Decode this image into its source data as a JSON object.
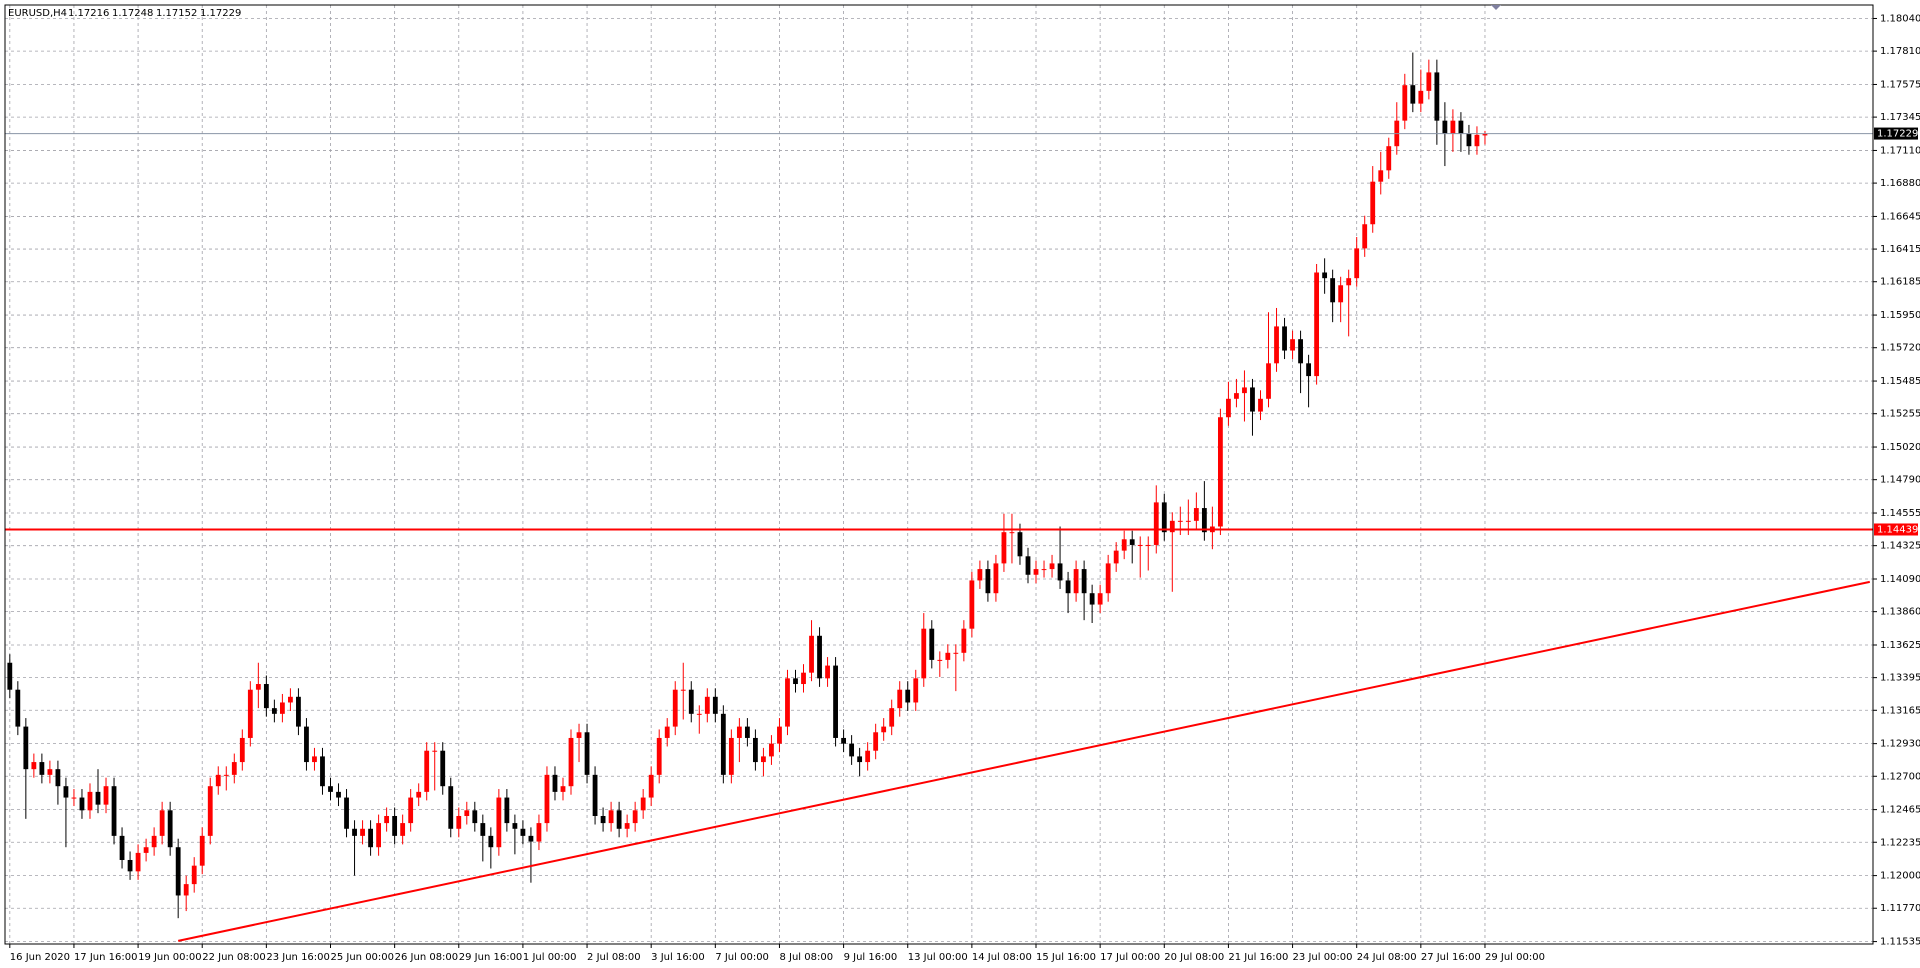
{
  "chart_data": {
    "type": "candlestick",
    "symbol": "EURUSD,H4",
    "up_color": "#ff0000",
    "down_color": "#000000",
    "grid": true,
    "xlim": [
      -0.6,
      232.4
    ],
    "ylim": [
      1.11518,
      1.18135
    ],
    "xticks": [
      {
        "value": 0,
        "label": "16 Jun 2020"
      },
      {
        "value": 8,
        "label": "17 Jun 16:00"
      },
      {
        "value": 16,
        "label": "19 Jun 00:00"
      },
      {
        "value": 24,
        "label": "22 Jun 08:00"
      },
      {
        "value": 32,
        "label": "23 Jun 16:00"
      },
      {
        "value": 40,
        "label": "25 Jun 00:00"
      },
      {
        "value": 48,
        "label": "26 Jun 08:00"
      },
      {
        "value": 56,
        "label": "29 Jun 16:00"
      },
      {
        "value": 64,
        "label": "1 Jul 00:00"
      },
      {
        "value": 72,
        "label": "2 Jul 08:00"
      },
      {
        "value": 80,
        "label": "3 Jul 16:00"
      },
      {
        "value": 88,
        "label": "7 Jul 00:00"
      },
      {
        "value": 96,
        "label": "8 Jul 08:00"
      },
      {
        "value": 104,
        "label": "9 Jul 16:00"
      },
      {
        "value": 112,
        "label": "13 Jul 00:00"
      },
      {
        "value": 120,
        "label": "14 Jul 08:00"
      },
      {
        "value": 128,
        "label": "15 Jul 16:00"
      },
      {
        "value": 136,
        "label": "17 Jul 00:00"
      },
      {
        "value": 144,
        "label": "20 Jul 08:00"
      },
      {
        "value": 152,
        "label": "21 Jul 16:00"
      },
      {
        "value": 160,
        "label": "23 Jul 00:00"
      },
      {
        "value": 168,
        "label": "24 Jul 08:00"
      },
      {
        "value": 176,
        "label": "27 Jul 16:00"
      },
      {
        "value": 184,
        "label": "29 Jul 00:00"
      }
    ],
    "yticks": [
      {
        "value": 1.1804,
        "label": "1.18040"
      },
      {
        "value": 1.1781,
        "label": "1.17810"
      },
      {
        "value": 1.17575,
        "label": "1.17575"
      },
      {
        "value": 1.17345,
        "label": "1.17345"
      },
      {
        "value": 1.1711,
        "label": "1.17110"
      },
      {
        "value": 1.1688,
        "label": "1.16880"
      },
      {
        "value": 1.16645,
        "label": "1.16645"
      },
      {
        "value": 1.16415,
        "label": "1.16415"
      },
      {
        "value": 1.16185,
        "label": "1.16185"
      },
      {
        "value": 1.1595,
        "label": "1.15950"
      },
      {
        "value": 1.1572,
        "label": "1.15720"
      },
      {
        "value": 1.15485,
        "label": "1.15485"
      },
      {
        "value": 1.15255,
        "label": "1.15255"
      },
      {
        "value": 1.1502,
        "label": "1.15020"
      },
      {
        "value": 1.1479,
        "label": "1.14790"
      },
      {
        "value": 1.14555,
        "label": "1.14555"
      },
      {
        "value": 1.14325,
        "label": "1.14325"
      },
      {
        "value": 1.1409,
        "label": "1.14090"
      },
      {
        "value": 1.1386,
        "label": "1.13860"
      },
      {
        "value": 1.13625,
        "label": "1.13625"
      },
      {
        "value": 1.13395,
        "label": "1.13395"
      },
      {
        "value": 1.13165,
        "label": "1.13165"
      },
      {
        "value": 1.1293,
        "label": "1.12930"
      },
      {
        "value": 1.127,
        "label": "1.12700"
      },
      {
        "value": 1.12465,
        "label": "1.12465"
      },
      {
        "value": 1.12235,
        "label": "1.12235"
      },
      {
        "value": 1.12,
        "label": "1.12000"
      },
      {
        "value": 1.1177,
        "label": "1.11770"
      },
      {
        "value": 1.11535,
        "label": "1.11535"
      }
    ],
    "hline": {
      "value": 1.14439,
      "color": "#ff0000"
    },
    "trendline": {
      "x": [
        21,
        232
      ],
      "y": [
        1.1154,
        1.1407
      ],
      "color": "#ff0000"
    },
    "candles": [
      [
        1.135,
        1.1356,
        1.1325,
        1.1331
      ],
      [
        1.1331,
        1.1337,
        1.1299,
        1.1305
      ],
      [
        1.1305,
        1.1311,
        1.124,
        1.1275
      ],
      [
        1.1275,
        1.1286,
        1.1269,
        1.128
      ],
      [
        1.128,
        1.1286,
        1.1265,
        1.1271
      ],
      [
        1.1271,
        1.1281,
        1.1265,
        1.1275
      ],
      [
        1.1275,
        1.1281,
        1.125,
        1.1263
      ],
      [
        1.1263,
        1.1269,
        1.122,
        1.1255
      ],
      [
        1.1255,
        1.1261,
        1.1249,
        1.1255
      ],
      [
        1.1255,
        1.1261,
        1.124,
        1.1246
      ],
      [
        1.1246,
        1.1265,
        1.124,
        1.1259
      ],
      [
        1.1259,
        1.1275,
        1.1244,
        1.125
      ],
      [
        1.125,
        1.1269,
        1.1244,
        1.1263
      ],
      [
        1.1263,
        1.1269,
        1.1222,
        1.1228
      ],
      [
        1.1228,
        1.1234,
        1.1205,
        1.1211
      ],
      [
        1.1211,
        1.1217,
        1.1197,
        1.1203
      ],
      [
        1.1203,
        1.1222,
        1.1197,
        1.1216
      ],
      [
        1.1216,
        1.1226,
        1.121,
        1.122
      ],
      [
        1.122,
        1.1234,
        1.1214,
        1.1228
      ],
      [
        1.1228,
        1.1252,
        1.1222,
        1.1246
      ],
      [
        1.1246,
        1.1252,
        1.1214,
        1.122
      ],
      [
        1.122,
        1.1226,
        1.117,
        1.1186
      ],
      [
        1.1186,
        1.12,
        1.1175,
        1.1194
      ],
      [
        1.1194,
        1.1213,
        1.1188,
        1.1207
      ],
      [
        1.1207,
        1.1234,
        1.1201,
        1.1228
      ],
      [
        1.1228,
        1.1269,
        1.1222,
        1.1263
      ],
      [
        1.1263,
        1.1277,
        1.1257,
        1.1271
      ],
      [
        1.1271,
        1.1277,
        1.126,
        1.1271
      ],
      [
        1.1271,
        1.1286,
        1.1265,
        1.128
      ],
      [
        1.128,
        1.1303,
        1.1274,
        1.1297
      ],
      [
        1.1297,
        1.1337,
        1.1291,
        1.1331
      ],
      [
        1.1331,
        1.135,
        1.1318,
        1.1335
      ],
      [
        1.1335,
        1.1341,
        1.1312,
        1.1318
      ],
      [
        1.1318,
        1.1324,
        1.1308,
        1.1314
      ],
      [
        1.1314,
        1.1328,
        1.1308,
        1.1322
      ],
      [
        1.1322,
        1.1332,
        1.1316,
        1.1326
      ],
      [
        1.1326,
        1.1332,
        1.1299,
        1.1305
      ],
      [
        1.1305,
        1.1311,
        1.1274,
        1.128
      ],
      [
        1.128,
        1.129,
        1.1274,
        1.1284
      ],
      [
        1.1284,
        1.129,
        1.1257,
        1.1263
      ],
      [
        1.1263,
        1.1269,
        1.1253,
        1.1259
      ],
      [
        1.1259,
        1.1265,
        1.1249,
        1.1255
      ],
      [
        1.1255,
        1.1261,
        1.1227,
        1.1233
      ],
      [
        1.1233,
        1.1239,
        1.12,
        1.1228
      ],
      [
        1.1228,
        1.1239,
        1.1222,
        1.1233
      ],
      [
        1.1233,
        1.1239,
        1.1214,
        1.122
      ],
      [
        1.122,
        1.1243,
        1.1214,
        1.1237
      ],
      [
        1.1237,
        1.1248,
        1.1231,
        1.1242
      ],
      [
        1.1242,
        1.1248,
        1.1222,
        1.1228
      ],
      [
        1.1228,
        1.1243,
        1.1222,
        1.1237
      ],
      [
        1.1237,
        1.1261,
        1.1231,
        1.1255
      ],
      [
        1.1255,
        1.1265,
        1.1249,
        1.1259
      ],
      [
        1.1259,
        1.1294,
        1.1253,
        1.1288
      ],
      [
        1.1288,
        1.1294,
        1.126,
        1.1288
      ],
      [
        1.1288,
        1.1294,
        1.1257,
        1.1263
      ],
      [
        1.1263,
        1.1269,
        1.1227,
        1.1233
      ],
      [
        1.1233,
        1.1248,
        1.1227,
        1.1242
      ],
      [
        1.1242,
        1.1252,
        1.1236,
        1.1246
      ],
      [
        1.1246,
        1.1252,
        1.1231,
        1.1237
      ],
      [
        1.1237,
        1.1243,
        1.121,
        1.1228
      ],
      [
        1.1228,
        1.1234,
        1.1205,
        1.122
      ],
      [
        1.122,
        1.1261,
        1.1214,
        1.1255
      ],
      [
        1.1255,
        1.1261,
        1.1231,
        1.1237
      ],
      [
        1.1237,
        1.1243,
        1.1215,
        1.1233
      ],
      [
        1.1233,
        1.1239,
        1.1222,
        1.1228
      ],
      [
        1.1228,
        1.1234,
        1.1195,
        1.1224
      ],
      [
        1.1224,
        1.1243,
        1.1218,
        1.1237
      ],
      [
        1.1237,
        1.1277,
        1.1231,
        1.1271
      ],
      [
        1.1271,
        1.1277,
        1.1253,
        1.1259
      ],
      [
        1.1259,
        1.1269,
        1.1253,
        1.1263
      ],
      [
        1.1263,
        1.1303,
        1.1257,
        1.1297
      ],
      [
        1.1297,
        1.1307,
        1.128,
        1.1301
      ],
      [
        1.1301,
        1.1307,
        1.1265,
        1.1271
      ],
      [
        1.1271,
        1.1277,
        1.1236,
        1.1242
      ],
      [
        1.1242,
        1.1248,
        1.1231,
        1.1237
      ],
      [
        1.1237,
        1.1252,
        1.1231,
        1.1246
      ],
      [
        1.1246,
        1.1252,
        1.1227,
        1.1233
      ],
      [
        1.1233,
        1.1243,
        1.1227,
        1.1237
      ],
      [
        1.1237,
        1.1252,
        1.1231,
        1.1246
      ],
      [
        1.1246,
        1.1261,
        1.124,
        1.1255
      ],
      [
        1.1255,
        1.1277,
        1.1249,
        1.1271
      ],
      [
        1.1271,
        1.1303,
        1.1265,
        1.1297
      ],
      [
        1.1297,
        1.1311,
        1.1291,
        1.1305
      ],
      [
        1.1305,
        1.1337,
        1.1299,
        1.1331
      ],
      [
        1.1331,
        1.135,
        1.131,
        1.1331
      ],
      [
        1.1331,
        1.1337,
        1.1308,
        1.1314
      ],
      [
        1.1314,
        1.132,
        1.13,
        1.1314
      ],
      [
        1.1314,
        1.1332,
        1.1308,
        1.1326
      ],
      [
        1.1326,
        1.1332,
        1.1308,
        1.1314
      ],
      [
        1.1314,
        1.132,
        1.1265,
        1.1271
      ],
      [
        1.1271,
        1.1303,
        1.1265,
        1.1297
      ],
      [
        1.1297,
        1.1311,
        1.128,
        1.1305
      ],
      [
        1.1305,
        1.1311,
        1.1291,
        1.1297
      ],
      [
        1.1297,
        1.1303,
        1.1274,
        1.128
      ],
      [
        1.128,
        1.129,
        1.127,
        1.1284
      ],
      [
        1.1284,
        1.1299,
        1.1278,
        1.1293
      ],
      [
        1.1293,
        1.1311,
        1.1287,
        1.1305
      ],
      [
        1.1305,
        1.1345,
        1.1299,
        1.1339
      ],
      [
        1.1339,
        1.1345,
        1.1329,
        1.1335
      ],
      [
        1.1335,
        1.1349,
        1.1329,
        1.1343
      ],
      [
        1.1343,
        1.138,
        1.1337,
        1.1369
      ],
      [
        1.1369,
        1.1375,
        1.1333,
        1.1339
      ],
      [
        1.1339,
        1.1354,
        1.1333,
        1.1348
      ],
      [
        1.1348,
        1.1354,
        1.1291,
        1.1297
      ],
      [
        1.1297,
        1.1303,
        1.1287,
        1.1293
      ],
      [
        1.1293,
        1.1299,
        1.1278,
        1.1284
      ],
      [
        1.1284,
        1.129,
        1.127,
        1.128
      ],
      [
        1.128,
        1.1294,
        1.1274,
        1.1288
      ],
      [
        1.1288,
        1.1307,
        1.1282,
        1.1301
      ],
      [
        1.1301,
        1.1311,
        1.1295,
        1.1305
      ],
      [
        1.1305,
        1.1324,
        1.1299,
        1.1318
      ],
      [
        1.1318,
        1.1337,
        1.1312,
        1.1331
      ],
      [
        1.1331,
        1.1337,
        1.1316,
        1.1322
      ],
      [
        1.1322,
        1.1345,
        1.1316,
        1.1339
      ],
      [
        1.1339,
        1.1385,
        1.1333,
        1.1374
      ],
      [
        1.1374,
        1.138,
        1.1346,
        1.1352
      ],
      [
        1.1352,
        1.1358,
        1.134,
        1.1352
      ],
      [
        1.1352,
        1.1363,
        1.1346,
        1.1357
      ],
      [
        1.1357,
        1.1363,
        1.133,
        1.1357
      ],
      [
        1.1357,
        1.138,
        1.1351,
        1.1374
      ],
      [
        1.1374,
        1.1414,
        1.1368,
        1.1408
      ],
      [
        1.1408,
        1.1422,
        1.1402,
        1.1416
      ],
      [
        1.1416,
        1.1422,
        1.1393,
        1.1399
      ],
      [
        1.1399,
        1.1426,
        1.1393,
        1.142
      ],
      [
        1.142,
        1.1455,
        1.1414,
        1.1442
      ],
      [
        1.1442,
        1.1455,
        1.142,
        1.1442
      ],
      [
        1.1442,
        1.1448,
        1.1419,
        1.1425
      ],
      [
        1.1425,
        1.1431,
        1.1406,
        1.1412
      ],
      [
        1.1412,
        1.1422,
        1.1406,
        1.1416
      ],
      [
        1.1416,
        1.1422,
        1.141,
        1.1416
      ],
      [
        1.1416,
        1.1426,
        1.141,
        1.142
      ],
      [
        1.142,
        1.1446,
        1.1402,
        1.1408
      ],
      [
        1.1408,
        1.1414,
        1.1385,
        1.1399
      ],
      [
        1.1399,
        1.1422,
        1.1393,
        1.1416
      ],
      [
        1.1416,
        1.1422,
        1.138,
        1.1399
      ],
      [
        1.1399,
        1.1405,
        1.1378,
        1.1391
      ],
      [
        1.1391,
        1.1405,
        1.1385,
        1.1399
      ],
      [
        1.1399,
        1.1426,
        1.1393,
        1.142
      ],
      [
        1.142,
        1.1435,
        1.1414,
        1.1429
      ],
      [
        1.1429,
        1.1443,
        1.1423,
        1.1437
      ],
      [
        1.1437,
        1.1443,
        1.142,
        1.1433
      ],
      [
        1.1433,
        1.1439,
        1.141,
        1.1433
      ],
      [
        1.1433,
        1.1439,
        1.1415,
        1.1433
      ],
      [
        1.1433,
        1.1475,
        1.1427,
        1.1463
      ],
      [
        1.1463,
        1.1469,
        1.1436,
        1.1442
      ],
      [
        1.1442,
        1.1456,
        1.14,
        1.145
      ],
      [
        1.145,
        1.146,
        1.144,
        1.145
      ],
      [
        1.145,
        1.1465,
        1.144,
        1.145
      ],
      [
        1.145,
        1.147,
        1.1444,
        1.1459
      ],
      [
        1.1459,
        1.1478,
        1.1436,
        1.1442
      ],
      [
        1.1442,
        1.146,
        1.143,
        1.1446
      ],
      [
        1.1446,
        1.1529,
        1.144,
        1.1523
      ],
      [
        1.1523,
        1.1548,
        1.1517,
        1.1536
      ],
      [
        1.1536,
        1.155,
        1.153,
        1.154
      ],
      [
        1.154,
        1.1556,
        1.152,
        1.1544
      ],
      [
        1.1544,
        1.155,
        1.151,
        1.1527
      ],
      [
        1.1527,
        1.1542,
        1.1521,
        1.1536
      ],
      [
        1.1536,
        1.1597,
        1.153,
        1.1561
      ],
      [
        1.1561,
        1.16,
        1.1555,
        1.1587
      ],
      [
        1.1587,
        1.1593,
        1.1564,
        1.157
      ],
      [
        1.157,
        1.1584,
        1.1564,
        1.1578
      ],
      [
        1.1578,
        1.1584,
        1.154,
        1.1561
      ],
      [
        1.1561,
        1.1567,
        1.153,
        1.1552
      ],
      [
        1.1552,
        1.1631,
        1.1546,
        1.1625
      ],
      [
        1.1625,
        1.1635,
        1.161,
        1.1621
      ],
      [
        1.1621,
        1.1627,
        1.159,
        1.1604
      ],
      [
        1.1604,
        1.1622,
        1.159,
        1.1616
      ],
      [
        1.1616,
        1.1627,
        1.158,
        1.1621
      ],
      [
        1.1621,
        1.165,
        1.1615,
        1.1642
      ],
      [
        1.1642,
        1.1665,
        1.1636,
        1.1659
      ],
      [
        1.1659,
        1.17,
        1.1653,
        1.1689
      ],
      [
        1.1689,
        1.171,
        1.168,
        1.1697
      ],
      [
        1.1697,
        1.172,
        1.1691,
        1.1714
      ],
      [
        1.1714,
        1.1745,
        1.1708,
        1.1732
      ],
      [
        1.1732,
        1.1765,
        1.1726,
        1.1757
      ],
      [
        1.1757,
        1.178,
        1.1738,
        1.1744
      ],
      [
        1.1744,
        1.1768,
        1.1738,
        1.1753
      ],
      [
        1.1753,
        1.1775,
        1.1747,
        1.1766
      ],
      [
        1.1766,
        1.1775,
        1.1715,
        1.1732
      ],
      [
        1.1732,
        1.1745,
        1.17,
        1.1723
      ],
      [
        1.1723,
        1.174,
        1.171,
        1.1732
      ],
      [
        1.1732,
        1.1738,
        1.171,
        1.1723
      ],
      [
        1.1723,
        1.1729,
        1.1708,
        1.1714
      ],
      [
        1.1714,
        1.1728,
        1.1708,
        1.1722
      ],
      [
        1.17216,
        1.17248,
        1.17152,
        1.17229
      ]
    ]
  }
}
